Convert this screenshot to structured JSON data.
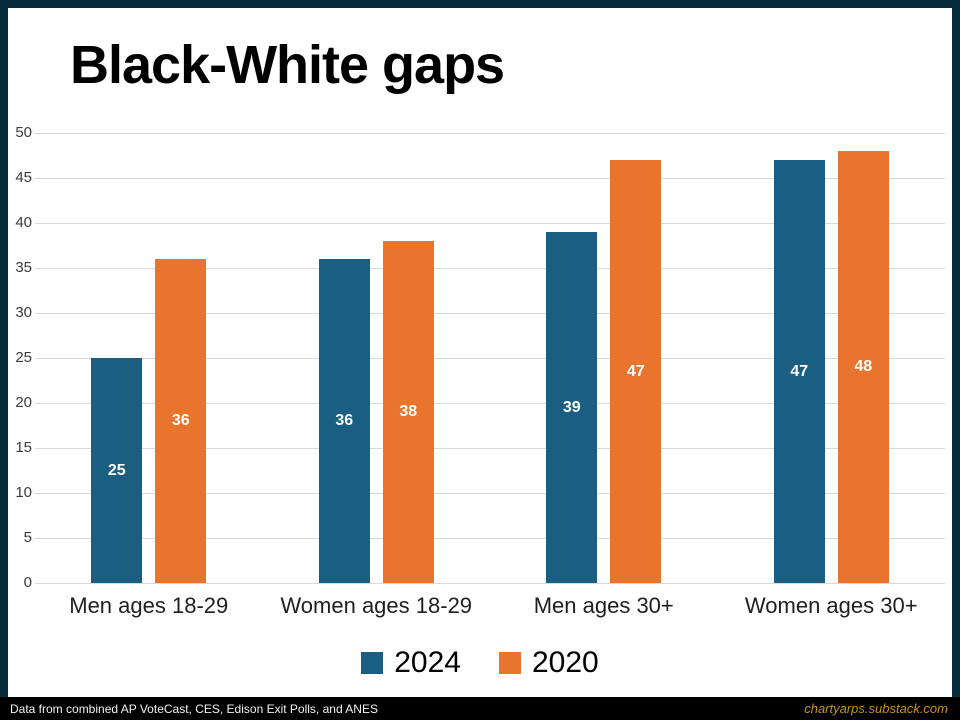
{
  "page": {
    "title": "Black-White gaps",
    "footer": {
      "source": "Data from combined AP VoteCast, CES, Edison Exit Polls, and ANES",
      "site": "chartyarps.substack.com"
    }
  },
  "chart_data": {
    "type": "bar",
    "title": "Black-White gaps",
    "categories": [
      "Men ages 18-29",
      "Women ages 18-29",
      "Men ages 30+",
      "Women ages 30+"
    ],
    "series": [
      {
        "name": "2024",
        "color": "#1a5f82",
        "values": [
          25,
          36,
          39,
          47
        ]
      },
      {
        "name": "2020",
        "color": "#e8742e",
        "values": [
          36,
          38,
          47,
          48
        ]
      }
    ],
    "bar_labels": [
      [
        "25",
        "36"
      ],
      [
        "36",
        "38"
      ],
      [
        "39",
        "47"
      ],
      [
        "47",
        "48"
      ]
    ],
    "ylim": [
      0,
      50
    ],
    "yticks": [
      0,
      5,
      10,
      15,
      20,
      25,
      30,
      35,
      40,
      45,
      50
    ],
    "grid": true,
    "gridline_color": "#d9d9d9",
    "legend_position": "bottom",
    "xlabel": "",
    "ylabel": ""
  },
  "colors": {
    "frame": "#082b3b",
    "background": "#ffffff",
    "footer_bar": "#000000",
    "footer_site_text": "#c79416",
    "series_2024": "#1a5f82",
    "series_2020": "#e8742e"
  }
}
